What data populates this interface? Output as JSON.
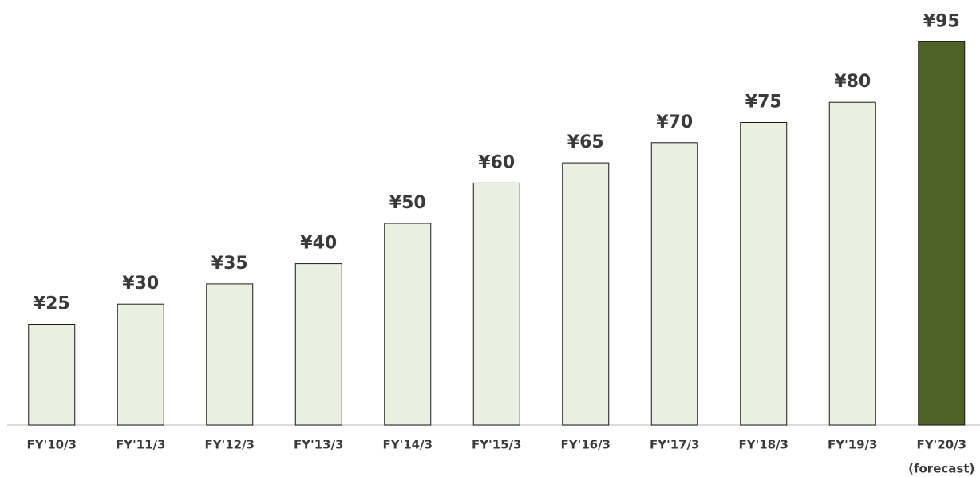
{
  "chart_data": {
    "type": "bar",
    "categories": [
      "FY'10/3",
      "FY'11/3",
      "FY'12/3",
      "FY'13/3",
      "FY'14/3",
      "FY'15/3",
      "FY'16/3",
      "FY'17/3",
      "FY'18/3",
      "FY'19/3",
      "FY'20/3"
    ],
    "forecast_label": "(forecast)",
    "values": [
      25,
      30,
      35,
      40,
      50,
      60,
      65,
      70,
      75,
      80,
      95
    ],
    "value_labels": [
      "¥25",
      "¥30",
      "¥35",
      "¥40",
      "¥50",
      "¥60",
      "¥65",
      "¥70",
      "¥75",
      "¥80",
      "¥95"
    ],
    "colors": [
      "#ebefdf",
      "#ebefdf",
      "#ebefdf",
      "#ebefdf",
      "#ebefdf",
      "#ebefdf",
      "#ebefdf",
      "#ebefdf",
      "#ebefdf",
      "#ebefdf",
      "#4e6127"
    ],
    "ylim": [
      0,
      100
    ]
  }
}
